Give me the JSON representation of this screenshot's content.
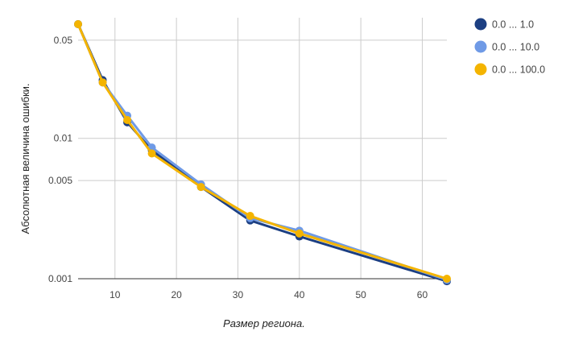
{
  "chart_data": {
    "type": "line",
    "title": "",
    "xlabel": "Размер региона.",
    "ylabel": "Абсолютная величина ошибки.",
    "x_scale": "linear",
    "y_scale": "log",
    "xlim": [
      4,
      64
    ],
    "ylim": [
      0.001,
      0.065
    ],
    "x_ticks": [
      10,
      20,
      30,
      40,
      50,
      60
    ],
    "y_ticks": [
      0.001,
      0.005,
      0.01,
      0.05
    ],
    "x_tick_labels": [
      "10",
      "20",
      "30",
      "40",
      "50",
      "60"
    ],
    "y_tick_labels": [
      "0.001",
      "0.005",
      "0.01",
      "0.05"
    ],
    "grid": true,
    "legend_position": "right",
    "x": [
      4,
      8,
      12,
      16,
      24,
      32,
      40,
      64
    ],
    "series": [
      {
        "name": "0.0 ... 1.0",
        "color": "#1c3f82",
        "values": [
          0.065,
          0.026,
          0.013,
          0.0082,
          0.0045,
          0.0026,
          0.002,
          0.00096
        ]
      },
      {
        "name": "0.0 ... 10.0",
        "color": "#6f9ae6",
        "values": [
          0.065,
          0.025,
          0.0145,
          0.0086,
          0.0047,
          0.0027,
          0.0022,
          0.00098
        ]
      },
      {
        "name": "0.0 ... 100.0",
        "color": "#f4b400",
        "values": [
          0.065,
          0.025,
          0.0135,
          0.0078,
          0.0045,
          0.0028,
          0.0021,
          0.001
        ]
      }
    ]
  }
}
